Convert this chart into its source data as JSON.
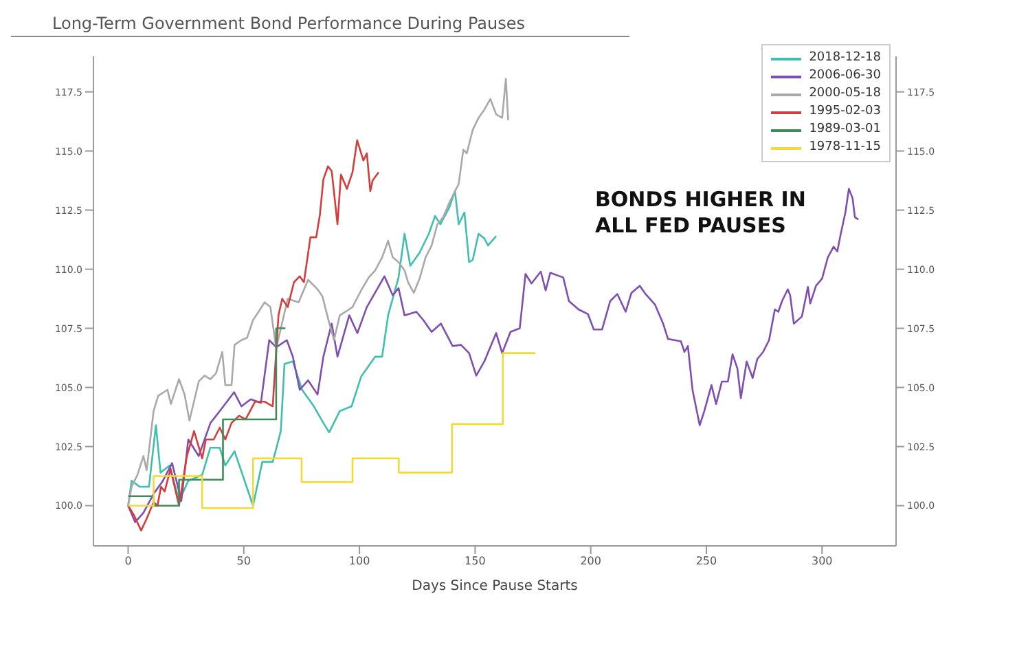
{
  "chart_data": {
    "type": "line",
    "title": "Long-Term Government Bond Performance During Pauses",
    "xlabel": "Days Since Pause Starts",
    "annotations": [
      "BONDS HIGHER IN ALL FED PAUSES"
    ],
    "xlim": [
      -15,
      332
    ],
    "xticks": [
      0,
      50,
      100,
      150,
      200,
      250,
      300
    ],
    "ylim": [
      98.3,
      119
    ],
    "yticks": [
      {
        "value": 100,
        "label": "100.0"
      },
      {
        "value": 102.5,
        "label": "102.5"
      },
      {
        "value": 105,
        "label": "105.0"
      },
      {
        "value": 107.5,
        "label": "107.5"
      },
      {
        "value": 110,
        "label": "110.0"
      },
      {
        "value": 112.5,
        "label": "112.5"
      },
      {
        "value": 115,
        "label": "115.0"
      },
      {
        "value": 117.5,
        "label": "117.5"
      }
    ],
    "y2lim": [
      98.3,
      119
    ],
    "y2ticks": [
      {
        "value": 100,
        "label": "100.0"
      },
      {
        "value": 102.5,
        "label": "102.5"
      },
      {
        "value": 105,
        "label": "105.0"
      },
      {
        "value": 107.5,
        "label": "107.5"
      },
      {
        "value": 110,
        "label": "110.0"
      },
      {
        "value": 112.5,
        "label": "112.5"
      },
      {
        "value": 115,
        "label": "115.0"
      },
      {
        "value": 117.5,
        "label": "117.5"
      }
    ],
    "legend": "top right",
    "grid": false,
    "marker": "none",
    "line_style": "solid",
    "series": [
      {
        "name": "2018-12-18",
        "color": "#3fbfad",
        "x": [
          0,
          1.5,
          5,
          9,
          12,
          14,
          18,
          22,
          26,
          32,
          35.5,
          39.6,
          42,
          46,
          54,
          58,
          62.5,
          66,
          67.6,
          71.2,
          75.2,
          80.3,
          84.4,
          86.9,
          91.5,
          96.6,
          100.7,
          106.8,
          109.8,
          112.4,
          116.9,
          119.5,
          122,
          126,
          130,
          132.7,
          135,
          138.8,
          141.3,
          142.9,
          145.4,
          147.4,
          149,
          151.5,
          154,
          155.6,
          159.1
        ],
        "values": [
          100,
          101.05,
          100.8,
          100.8,
          103.4,
          101.4,
          101.7,
          100.2,
          101.05,
          101.3,
          102.45,
          102.45,
          101.7,
          102.3,
          100,
          101.85,
          101.85,
          103.15,
          106,
          106.1,
          104.9,
          104.2,
          103.5,
          103.1,
          104,
          104.2,
          105.45,
          106.3,
          106.3,
          108.05,
          109.65,
          111.5,
          110.15,
          110.7,
          111.5,
          112.25,
          111.9,
          112.6,
          113.3,
          111.9,
          112.4,
          110.3,
          110.4,
          111.5,
          111.3,
          111,
          111.4
        ]
      },
      {
        "name": "2006-06-30",
        "color": "#7e4fb0",
        "x": [
          0,
          3,
          6.6,
          11,
          15,
          19,
          23,
          26,
          30.5,
          35.6,
          39.6,
          45.8,
          49,
          53,
          57.4,
          61,
          64,
          68.6,
          71.2,
          74.2,
          77.8,
          81.9,
          84.4,
          88,
          90.5,
          95.6,
          99.1,
          103.2,
          107.3,
          110.8,
          114.4,
          116.9,
          119.5,
          124.6,
          127.6,
          131.2,
          135.2,
          140.3,
          143.9,
          147.4,
          150.5,
          154,
          159.1,
          161.7,
          165.3,
          169.3,
          171.8,
          174.4,
          178.4,
          180.5,
          182.5,
          188.1,
          190.6,
          194.7,
          198.8,
          201.3,
          204.9,
          208.4,
          211.5,
          215.1,
          217.6,
          221.2,
          223.7,
          227.8,
          231.3,
          233.4,
          239,
          240.5,
          242,
          244,
          247.1,
          249.1,
          252.2,
          254.2,
          256.7,
          259.3,
          261.3,
          263.4,
          264.9,
          267.4,
          270,
          272,
          274.5,
          277.1,
          279.6,
          281.1,
          282.7,
          285.2,
          286.2,
          287.8,
          291.3,
          293.9,
          294.9,
          297.4,
          300,
          302.5,
          305,
          306.6,
          308.1,
          310.1,
          311.6,
          313.2,
          314.2,
          315.7
        ],
        "values": [
          100,
          99.3,
          99.7,
          100.5,
          101.05,
          101.8,
          100.2,
          102.8,
          102.1,
          103.5,
          104,
          104.8,
          104.2,
          104.5,
          104.35,
          107,
          106.7,
          107,
          106.3,
          104.9,
          105.3,
          104.7,
          106.3,
          107.7,
          106.3,
          108.05,
          107.3,
          108.4,
          109.1,
          109.7,
          108.9,
          109.2,
          108.05,
          108.2,
          107.85,
          107.35,
          107.7,
          106.75,
          106.8,
          106.45,
          105.5,
          106.1,
          107.3,
          106.45,
          107.35,
          107.5,
          109.8,
          109.4,
          109.9,
          109.1,
          109.85,
          109.65,
          108.65,
          108.3,
          108.1,
          107.45,
          107.45,
          108.65,
          108.95,
          108.2,
          109,
          109.3,
          108.95,
          108.5,
          107.7,
          107.05,
          106.95,
          106.5,
          106.75,
          104.9,
          103.4,
          104,
          105.1,
          104.3,
          105.25,
          105.25,
          106.4,
          105.8,
          104.55,
          106.1,
          105.4,
          106.2,
          106.5,
          107,
          108.3,
          108.2,
          108.65,
          109.15,
          108.9,
          107.7,
          108,
          109.25,
          108.55,
          109.3,
          109.6,
          110.5,
          110.95,
          110.75,
          111.5,
          112.4,
          113.4,
          113,
          112.2,
          112.1
        ]
      },
      {
        "name": "2000-05-18",
        "color": "#a9a9a9",
        "x": [
          0,
          1.5,
          4,
          6.6,
          8,
          11,
          13,
          17,
          18.5,
          22,
          24.4,
          26.5,
          30.5,
          33,
          35.6,
          38,
          40.7,
          42,
          44.7,
          46,
          49,
          51.4,
          54,
          56.4,
          59,
          61.5,
          64,
          69,
          73.7,
          77.8,
          81.9,
          84,
          87,
          89,
          91.5,
          94,
          97,
          100.7,
          104,
          106.8,
          109.8,
          112.4,
          114.4,
          116.9,
          119.5,
          121,
          123.5,
          126,
          128.6,
          131.2,
          133.7,
          136.2,
          138.8,
          141.3,
          142.9,
          144.9,
          146.4,
          149,
          151.5,
          154,
          156.6,
          159.1,
          161.7,
          163.3,
          164.3
        ],
        "values": [
          100,
          100.8,
          101.3,
          102.1,
          101.5,
          104,
          104.65,
          104.9,
          104.3,
          105.35,
          104.7,
          103.6,
          105.25,
          105.5,
          105.35,
          105.6,
          106.5,
          105.1,
          105.1,
          106.8,
          107,
          107.1,
          107.85,
          108.2,
          108.6,
          108.4,
          106.65,
          108.75,
          108.6,
          109.55,
          109.15,
          108.85,
          107.7,
          107,
          108.05,
          108.2,
          108.4,
          109.1,
          109.65,
          109.95,
          110.5,
          111.2,
          110.5,
          110.3,
          109.95,
          109.45,
          109,
          109.6,
          110.5,
          111,
          111.9,
          112.2,
          112.8,
          113.3,
          113.6,
          115.05,
          114.9,
          115.9,
          116.4,
          116.75,
          117.2,
          116.55,
          116.4,
          118.05,
          116.3
        ]
      },
      {
        "name": "1995-02-03",
        "color": "#d43d3d",
        "x": [
          0,
          2.5,
          5.6,
          8,
          11,
          12.7,
          14.2,
          15.8,
          18.3,
          22,
          25.4,
          28.5,
          32,
          33.6,
          37,
          39.6,
          42,
          44.7,
          48,
          50.8,
          54.9,
          59,
          62.5,
          65,
          66.6,
          69,
          71.7,
          74.2,
          76,
          78.8,
          81.3,
          82.9,
          84.4,
          86.4,
          88,
          90.5,
          92,
          94.6,
          97,
          99,
          101.7,
          103.2,
          104.7,
          105.7,
          108.3
        ],
        "values": [
          100,
          99.6,
          98.95,
          99.45,
          100.15,
          100,
          100.8,
          100.6,
          101.55,
          100,
          102.1,
          103.15,
          102,
          102.8,
          102.8,
          103.3,
          102.8,
          103.5,
          103.8,
          103.65,
          104.4,
          104.4,
          104.2,
          108.05,
          108.75,
          108.4,
          109.45,
          109.7,
          109.45,
          111.35,
          111.35,
          112.3,
          113.8,
          114.35,
          114.15,
          111.9,
          114,
          113.4,
          114.1,
          115.45,
          114.6,
          114.9,
          113.3,
          113.75,
          114.1
        ]
      },
      {
        "name": "1989-03-01",
        "color": "#3d8c5a",
        "type": "step",
        "x": [
          0,
          11,
          22,
          41,
          64,
          68
        ],
        "values": [
          100.4,
          100,
          101.1,
          103.65,
          107.5,
          107.5
        ]
      },
      {
        "name": "1978-11-15",
        "color": "#f2d936",
        "type": "step",
        "x": [
          0,
          11,
          32,
          54,
          75,
          97,
          117,
          140,
          162,
          176
        ],
        "values": [
          100,
          101.25,
          99.9,
          102,
          101,
          102,
          101.4,
          103.45,
          106.45,
          106.45
        ]
      }
    ]
  }
}
